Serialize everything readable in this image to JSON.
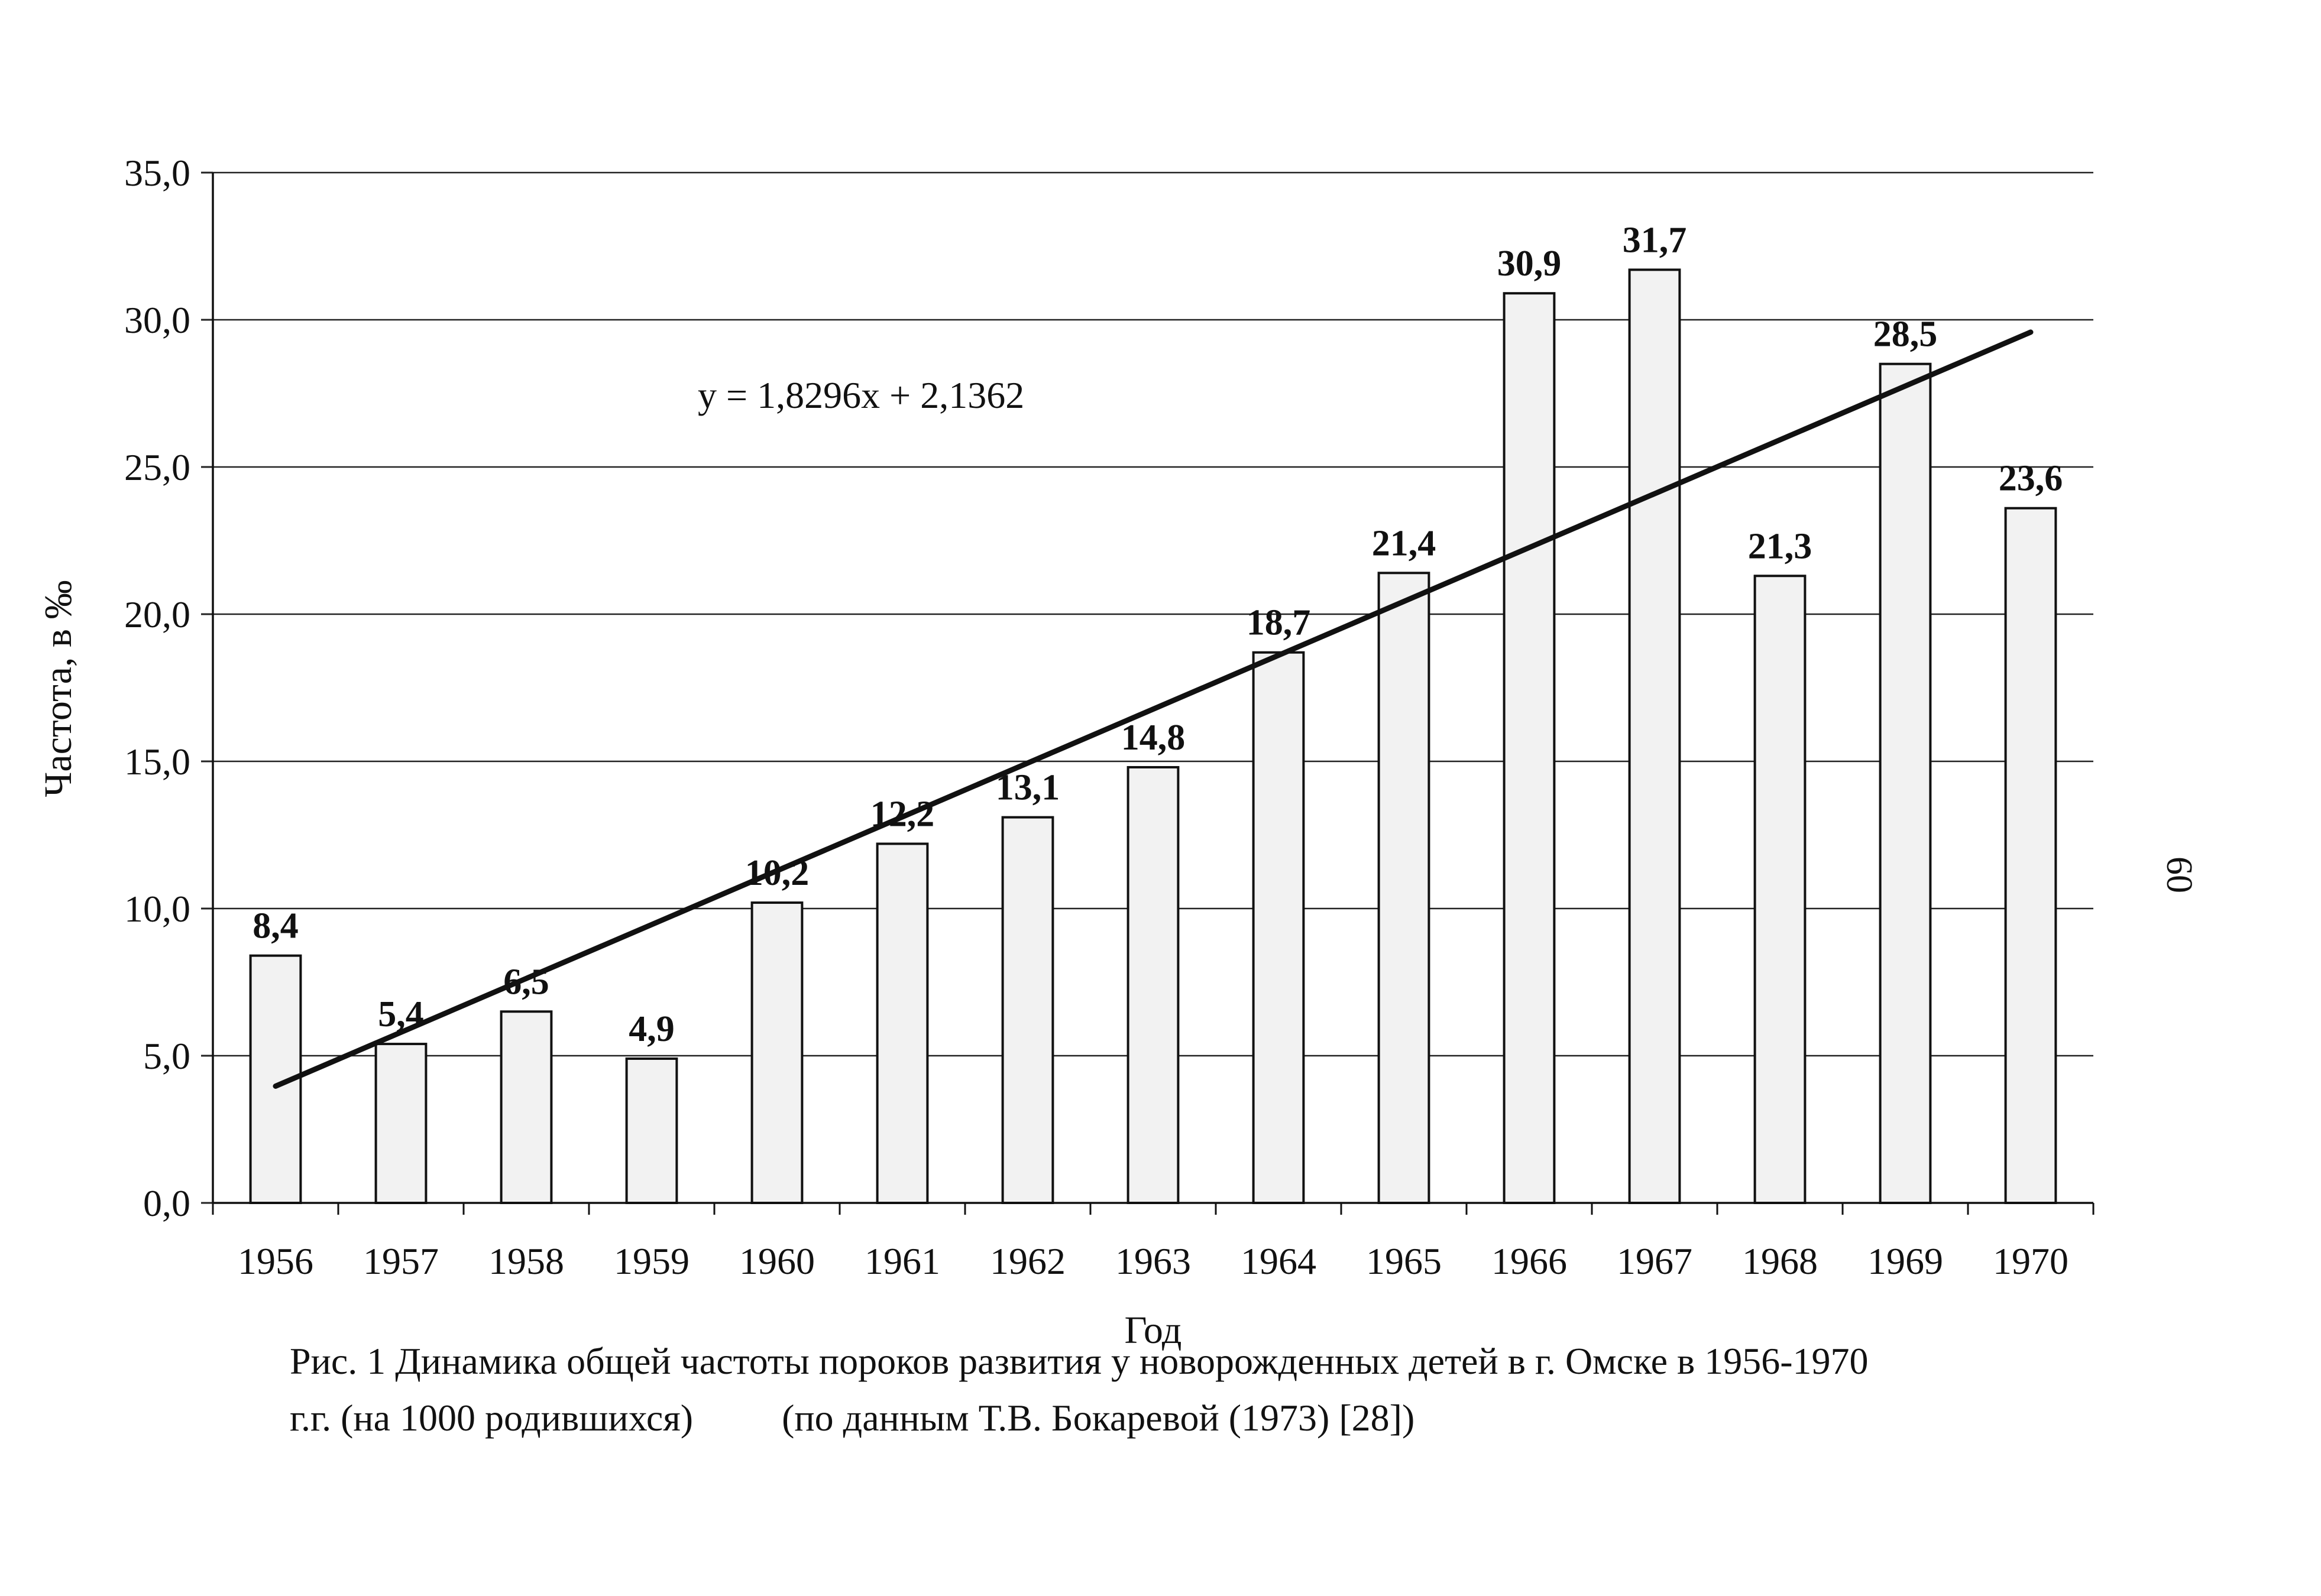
{
  "chart_data": {
    "type": "bar",
    "categories": [
      "1956",
      "1957",
      "1958",
      "1959",
      "1960",
      "1961",
      "1962",
      "1963",
      "1964",
      "1965",
      "1966",
      "1967",
      "1968",
      "1969",
      "1970"
    ],
    "series": [
      {
        "values": [
          8.4,
          5.4,
          6.5,
          4.9,
          10.2,
          12.2,
          13.1,
          14.8,
          18.7,
          21.4,
          30.9,
          31.7,
          21.3,
          28.5,
          23.6
        ]
      }
    ],
    "data_labels": [
      "8,4",
      "5,4",
      "6,5",
      "4,9",
      "10,2",
      "12,2",
      "13,1",
      "14,8",
      "18,7",
      "21,4",
      "30,9",
      "31,7",
      "21,3",
      "28,5",
      "23,6"
    ],
    "y_ticks": [
      0,
      5,
      10,
      15,
      20,
      25,
      30,
      35
    ],
    "y_tick_labels": [
      "0,0",
      "5,0",
      "10,0",
      "15,0",
      "20,0",
      "25,0",
      "30,0",
      "35,0"
    ],
    "ylim": [
      0,
      35
    ],
    "grid": "horizontal",
    "xlabel": "Год",
    "ylabel": "Частота, в ‰",
    "trendline": {
      "type": "linear",
      "slope": 1.8296,
      "intercept": 2.1362,
      "equation": "y = 1,8296x + 2,1362"
    },
    "bar_fill": "#f2f2f2",
    "bar_stroke": "#111111",
    "line_color": "#111111"
  },
  "caption": {
    "line1": "Рис. 1   Динамика общей частоты пороков развития у новорожденных детей в г. Омске в 1956-1970",
    "line2_left": "г.г. (на 1000 родившихся)",
    "line2_right": "(по данным Т.В. Бокаревой (1973) [28])"
  },
  "page_number": "60"
}
